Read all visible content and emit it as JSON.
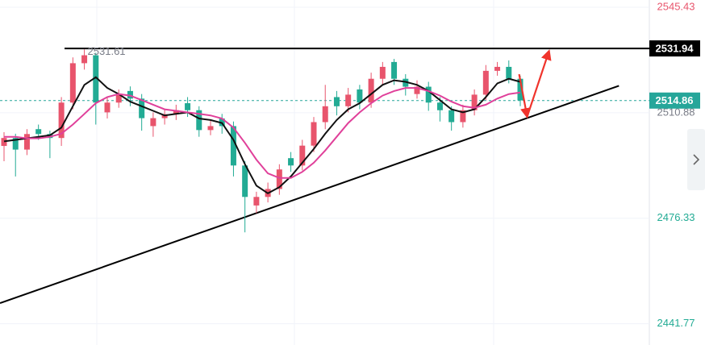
{
  "chart_data": {
    "type": "candlestick",
    "open": [
      2500.0,
      2502.6,
      2498.8,
      2505.5,
      2503.9,
      2502.6,
      2514.2,
      2527.1,
      2529.7,
      2511.0,
      2514.2,
      2518.0,
      2515.5,
      2506.5,
      2509.1,
      2510.4,
      2514.0,
      2511.7,
      2505.2,
      2509.0,
      2506.5,
      2493.6,
      2480.5,
      2483.3,
      2485.9,
      2496.0,
      2493.6,
      2500.1,
      2507.8,
      2516.0,
      2513.0,
      2518.5,
      2514.2,
      2522.0,
      2527.5,
      2522.0,
      2517.0,
      2519.4,
      2514.2,
      2511.7,
      2507.8,
      2511.7,
      2516.8,
      2524.6,
      2525.9,
      2522.0
    ],
    "high": [
      2504.5,
      2504.0,
      2505.5,
      2507.0,
      2505.0,
      2516.0,
      2529.0,
      2531.61,
      2530.5,
      2516.0,
      2518.5,
      2519.5,
      2517.0,
      2511.0,
      2512.0,
      2513.5,
      2516.0,
      2513.0,
      2508.5,
      2510.5,
      2508.0,
      2495.0,
      2485.0,
      2488.0,
      2494.0,
      2498.0,
      2502.0,
      2509.5,
      2520.0,
      2518.0,
      2519.0,
      2520.0,
      2524.0,
      2527.5,
      2528.5,
      2523.5,
      2521.5,
      2521.0,
      2516.0,
      2513.0,
      2513.5,
      2518.5,
      2526.5,
      2527.5,
      2528.0,
      2523.0
    ],
    "low": [
      2495.0,
      2490.0,
      2497.0,
      2502.0,
      2496.0,
      2500.0,
      2512.0,
      2525.0,
      2507.0,
      2509.0,
      2512.5,
      2513.0,
      2505.0,
      2503.0,
      2507.0,
      2508.5,
      2509.5,
      2503.0,
      2503.5,
      2504.0,
      2490.0,
      2471.7,
      2478.0,
      2481.5,
      2484.0,
      2491.5,
      2492.0,
      2498.0,
      2505.5,
      2510.0,
      2511.0,
      2512.0,
      2512.5,
      2520.0,
      2520.0,
      2516.5,
      2515.5,
      2511.5,
      2508.0,
      2505.0,
      2506.0,
      2510.0,
      2515.0,
      2523.0,
      2520.5,
      2513.0
    ],
    "close": [
      2502.6,
      2498.8,
      2503.9,
      2503.9,
      2502.6,
      2514.2,
      2527.1,
      2529.7,
      2514.2,
      2514.2,
      2516.8,
      2515.5,
      2509.1,
      2509.1,
      2510.4,
      2511.7,
      2511.7,
      2505.2,
      2506.5,
      2506.5,
      2493.6,
      2483.3,
      2483.3,
      2485.9,
      2492.3,
      2493.6,
      2500.1,
      2507.8,
      2513.0,
      2513.0,
      2516.8,
      2514.2,
      2522.0,
      2525.9,
      2522.0,
      2519.4,
      2519.4,
      2514.2,
      2511.7,
      2507.8,
      2511.7,
      2516.8,
      2524.6,
      2525.9,
      2522.0,
      2514.9
    ],
    "up_color": "#e8546c",
    "down_color": "#22ab94",
    "lines": [
      {
        "color": "#111111",
        "values": [
          2501.5,
          2502,
          2502.5,
          2503,
          2503.5,
          2506,
          2513,
          2520,
          2522.5,
          2519,
          2517,
          2514.5,
          2513,
          2511.5,
          2510,
          2510.5,
          2511,
          2509,
          2508.5,
          2507.5,
          2502,
          2494,
          2487,
          2484.5,
          2486.5,
          2490,
          2494.5,
          2499,
          2504,
          2508.5,
          2512,
          2514,
          2517,
          2520,
          2521.5,
          2521,
          2520,
          2518,
          2515,
          2512,
          2511,
          2512,
          2516,
          2520.5,
          2522,
          2521
        ]
      },
      {
        "color": "#e0409a",
        "values": [
          2503,
          2503,
          2502.5,
          2502.5,
          2503,
          2504,
          2507,
          2510.5,
          2514,
          2516,
          2517,
          2516.5,
          2515,
          2513.5,
          2512,
          2511.5,
          2511,
          2510.5,
          2510,
          2509,
          2506,
          2501,
          2495.5,
          2491,
          2489.5,
          2489.5,
          2491.5,
          2494.5,
          2498.5,
          2503,
          2507.5,
          2511,
          2514,
          2516.5,
          2518,
          2519,
          2519,
          2518,
          2516.5,
          2514.5,
          2513,
          2512.5,
          2513.5,
          2515.5,
          2517,
          2517.5
        ]
      }
    ],
    "ylim": [
      2434.8,
      2547.8
    ],
    "yticks": [
      2545.43,
      2510.88,
      2476.33,
      2441.77
    ],
    "ytick_colors": [
      "#e8546c",
      "#787b86",
      "#22ab94",
      "#22ab94"
    ],
    "grid": true,
    "high_label": "2531.61",
    "resistance": {
      "value": 2531.94,
      "color": "#000000"
    },
    "last_price": {
      "value": 2514.86,
      "color": "#26a69a"
    },
    "trend_line": {
      "x": [
        -0.35,
        53.6
      ],
      "y": [
        2448.5,
        2519.7
      ],
      "color": "#000000"
    },
    "forecast_arrow": {
      "x": [
        44.9,
        45.6,
        47.5
      ],
      "y": [
        2523.5,
        2509.6,
        2531.0
      ],
      "color": "#f0342c"
    }
  }
}
